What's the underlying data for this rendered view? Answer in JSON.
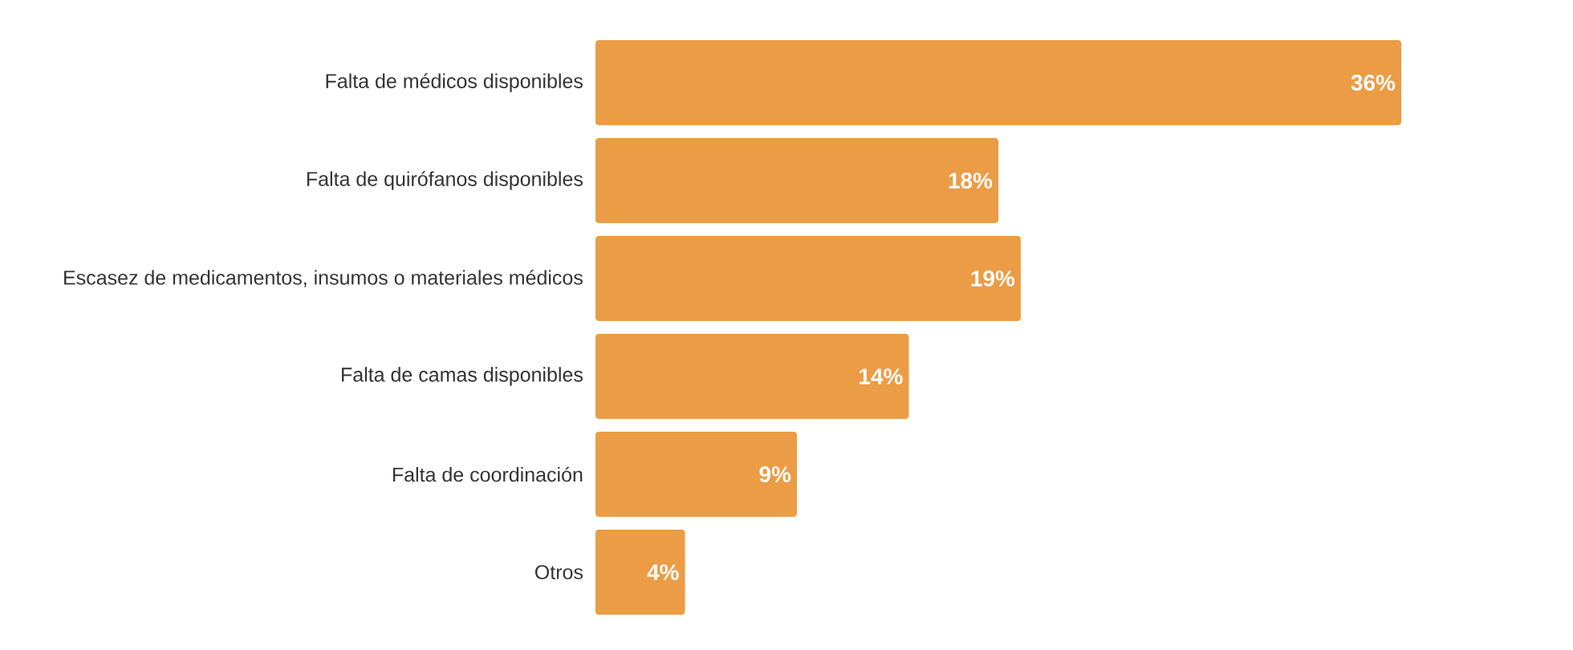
{
  "chart_data": {
    "type": "bar",
    "orientation": "horizontal",
    "categories": [
      "Falta de médicos disponibles",
      "Falta de quirófanos disponibles",
      "Escasez de medicamentos, insumos o materiales médicos",
      "Falta de camas disponibles",
      "Falta de coordinación",
      "Otros"
    ],
    "values": [
      36,
      18,
      19,
      14,
      9,
      4
    ],
    "value_labels": [
      "36%",
      "18%",
      "19%",
      "14%",
      "9%",
      "4%"
    ],
    "color": "#eb9c45"
  }
}
